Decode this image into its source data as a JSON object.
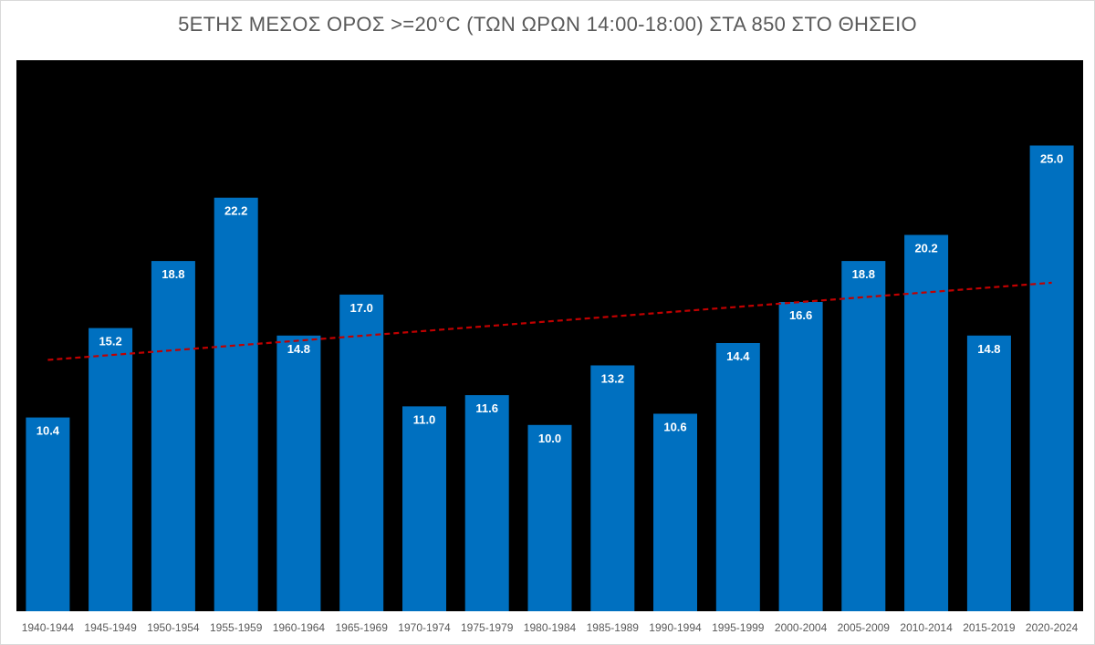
{
  "chart_data": {
    "type": "bar",
    "title": "5ΕΤΗΣ ΜΕΣΟΣ ΟΡΟΣ >=20°C (ΤΩΝ ΩΡΩΝ 14:00-18:00) ΣΤΑ 850 ΣΤΟ ΘΗΣΕΙΟ",
    "xlabel": "",
    "ylabel": "",
    "categories": [
      "1940-1944",
      "1945-1949",
      "1950-1954",
      "1955-1959",
      "1960-1964",
      "1965-1969",
      "1970-1974",
      "1975-1979",
      "1980-1984",
      "1985-1989",
      "1990-1994",
      "1995-1999",
      "2000-2004",
      "2005-2009",
      "2010-2014",
      "2015-2019",
      "2020-2024"
    ],
    "values": [
      10.4,
      15.2,
      18.8,
      22.2,
      14.8,
      17.0,
      11.0,
      11.6,
      10.0,
      13.2,
      10.6,
      14.4,
      16.6,
      18.8,
      20.2,
      14.8,
      25.0
    ],
    "value_labels": [
      "10.4",
      "15.2",
      "18.8",
      "22.2",
      "14.8",
      "17.0",
      "11.0",
      "11.6",
      "10.0",
      "13.2",
      "10.6",
      "14.4",
      "16.6",
      "18.8",
      "20.2",
      "14.8",
      "25.0"
    ],
    "ylim": [
      0,
      30
    ],
    "trendline": {
      "type": "linear",
      "style": "dashed",
      "color": "#c00000"
    },
    "grid": false,
    "legend": "none",
    "colors": {
      "bar": "#0070c0",
      "plot_background": "#000000",
      "label": "#ffffff",
      "axis_text": "#595959"
    }
  }
}
